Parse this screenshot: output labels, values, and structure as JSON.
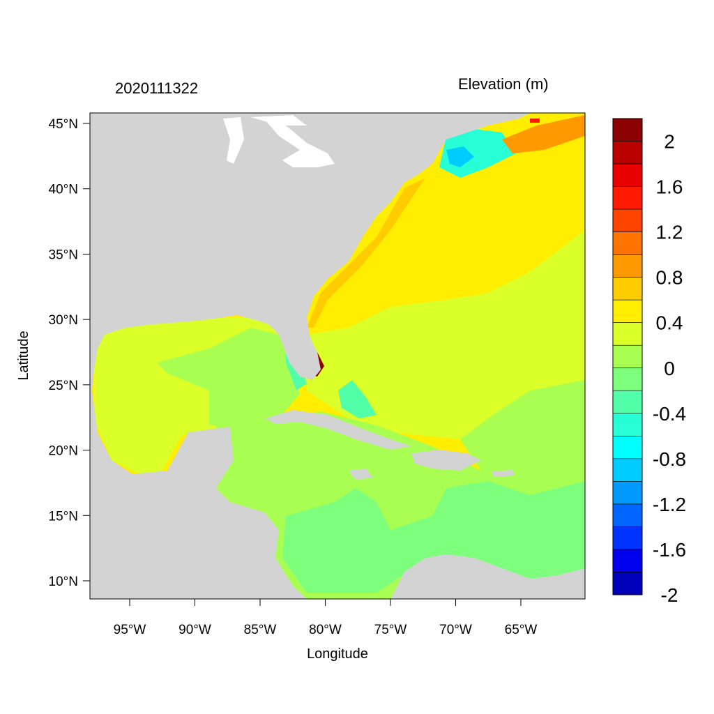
{
  "header": {
    "timestamp": "2020111322",
    "variable": "Elevation (m)"
  },
  "axes": {
    "xlabel": "Longitude",
    "ylabel": "Latitude",
    "x_ticks": [
      "95°W",
      "90°W",
      "85°W",
      "80°W",
      "75°W",
      "70°W",
      "65°W"
    ],
    "y_ticks": [
      "10°N",
      "15°N",
      "20°N",
      "25°N",
      "30°N",
      "35°N",
      "40°N",
      "45°N"
    ]
  },
  "map": {
    "type": "filled contour map",
    "region": "Western North Atlantic, Gulf of Mexico and Caribbean Sea",
    "lon_range": [
      -98,
      -60.2
    ],
    "lat_range": [
      8.5,
      46
    ],
    "land_color": "#d3d3d3",
    "lakes_color": "#ffffff",
    "dominant_levels": {
      "gulf_of_mexico": "0 to 0.4",
      "western_atlantic": "0.4 to 0.6",
      "caribbean": "-0.2 to 0.2",
      "gulf_of_maine": "-0.8 to -0.4",
      "south_florida_coast": "above 2"
    }
  },
  "colorbar": {
    "labels": [
      "2",
      "1.6",
      "1.2",
      "0.8",
      "0.4",
      "0",
      "-0.4",
      "-0.8",
      "-1.2",
      "-1.6",
      "-2"
    ],
    "colors": [
      "#8b0000",
      "#bb0000",
      "#e60000",
      "#ff1a00",
      "#ff4400",
      "#ff7300",
      "#ff9900",
      "#ffcc00",
      "#ffee00",
      "#dbff29",
      "#a8ff52",
      "#7dff7d",
      "#52ffa8",
      "#29ffd6",
      "#00ffff",
      "#00ccff",
      "#009aff",
      "#0066ff",
      "#0033ff",
      "#0000ee",
      "#0000b8"
    ]
  }
}
